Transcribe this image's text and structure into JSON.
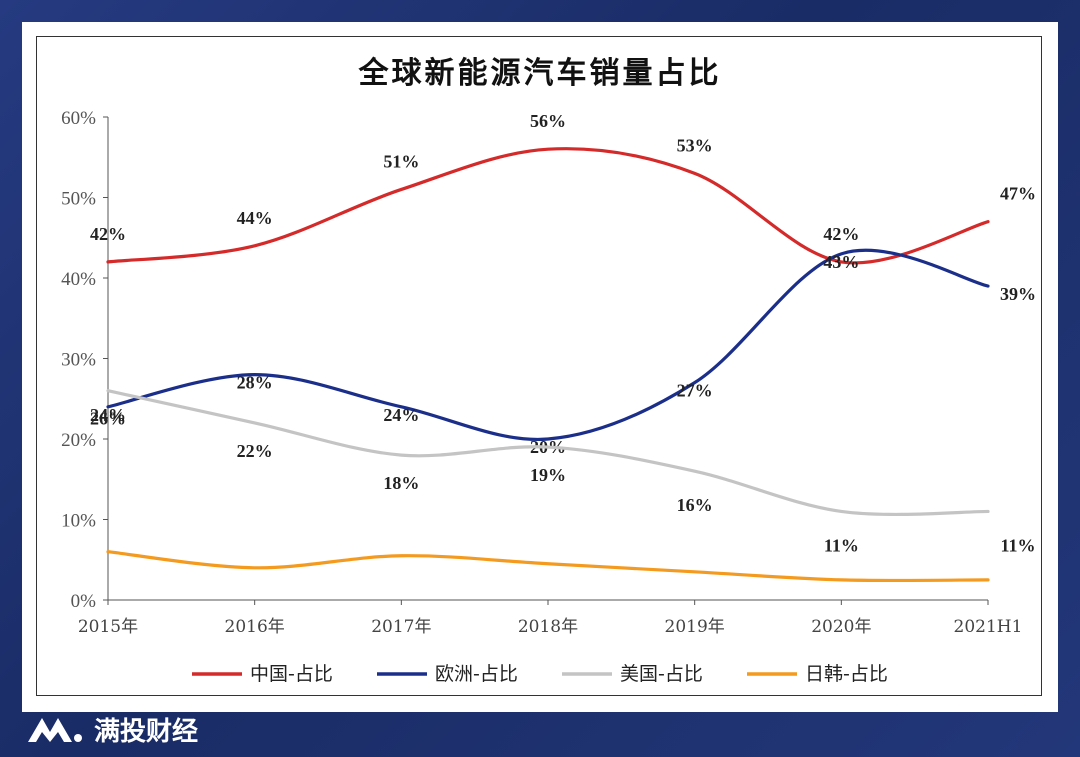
{
  "brand": {
    "name": "满投财经"
  },
  "chart_data": {
    "type": "line",
    "title": "全球新能源汽车销量占比",
    "categories": [
      "2015年",
      "2016年",
      "2017年",
      "2018年",
      "2019年",
      "2020年",
      "2021H1"
    ],
    "ylim": [
      0,
      60
    ],
    "yticks": [
      "0%",
      "10%",
      "20%",
      "30%",
      "40%",
      "50%",
      "60%"
    ],
    "series": [
      {
        "name": "中国-占比",
        "color": "#d42a2a",
        "values": [
          42,
          44,
          51,
          56,
          53,
          42,
          47
        ],
        "labels": [
          "42%",
          "44%",
          "51%",
          "56%",
          "53%",
          "42%",
          "47%"
        ]
      },
      {
        "name": "欧洲-占比",
        "color": "#1b2f8a",
        "values": [
          24,
          28,
          24,
          20,
          27,
          43,
          39
        ],
        "labels": [
          "24%",
          "28%",
          "24%",
          "20%",
          "27%",
          "43%",
          "39%"
        ]
      },
      {
        "name": "美国-占比",
        "color": "#c4c4c4",
        "values": [
          26,
          22,
          18,
          19,
          16,
          11,
          11
        ],
        "labels": [
          "26%",
          "22%",
          "18%",
          "19%",
          "16%",
          "11%",
          "11%"
        ]
      },
      {
        "name": "日韩-占比",
        "color": "#f39a1f",
        "values": [
          6,
          4,
          5.5,
          4.5,
          3.5,
          2.5,
          2.5
        ],
        "labels": []
      }
    ],
    "legend": "bottom"
  }
}
